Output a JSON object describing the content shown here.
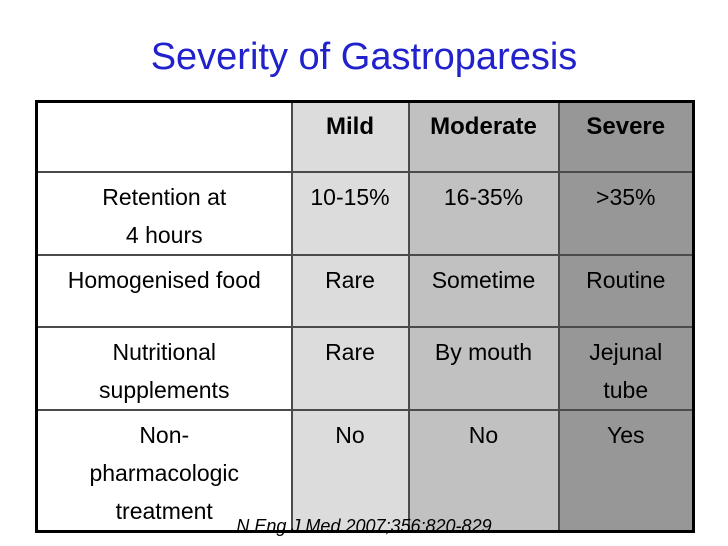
{
  "slide": {
    "title": "Severity of Gastroparesis",
    "citation": "N Eng J Med 2007;356:820-829"
  },
  "colors": {
    "title_blue": "#2222cc",
    "mild_column": "#dcdcdc",
    "moderate_column": "#c1c1c1",
    "severe_column": "#979797",
    "table_border": "#000000",
    "cell_border": "#4a4a4a",
    "text": "#000000"
  },
  "table": {
    "columns": [
      "",
      "Mild",
      "Moderate",
      "Severe"
    ],
    "rows": [
      {
        "label": "Retention at\n4 hours",
        "mild": "10-15%",
        "moderate": "16-35%",
        "severe": ">35%"
      },
      {
        "label": "Homogenised food",
        "mild": "Rare",
        "moderate": "Sometime",
        "severe": "Routine"
      },
      {
        "label": "Nutritional\nsupplements",
        "mild": "Rare",
        "moderate": "By mouth",
        "severe": "Jejunal\ntube"
      },
      {
        "label": "Non-\npharmacologic\ntreatment",
        "mild": "No",
        "moderate": "No",
        "severe": "Yes"
      }
    ]
  }
}
